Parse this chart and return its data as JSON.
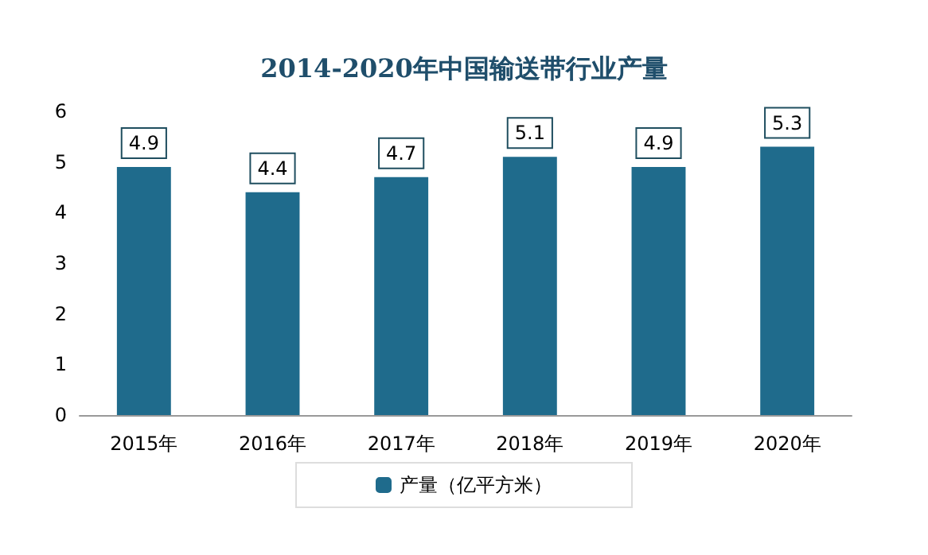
{
  "chart_data": {
    "type": "bar",
    "title": "2014-2020年中国输送带行业产量",
    "categories": [
      "2015年",
      "2016年",
      "2017年",
      "2018年",
      "2019年",
      "2020年"
    ],
    "series": [
      {
        "name": "产量（亿平方米）",
        "color": "#1f6b8c",
        "values": [
          4.9,
          4.4,
          4.7,
          5.1,
          4.9,
          5.3
        ]
      }
    ],
    "ylim": [
      0,
      6
    ],
    "yticks": [
      0,
      1,
      2,
      3,
      4,
      5,
      6
    ],
    "grid": false,
    "legend": "bottom",
    "data_labels": true
  }
}
